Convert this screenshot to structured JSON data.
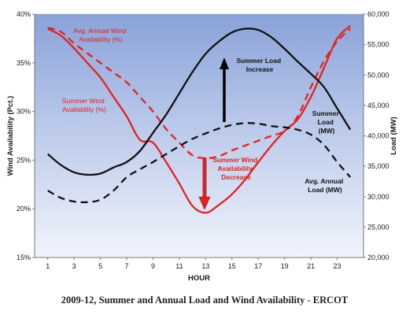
{
  "chart_data": {
    "type": "line",
    "title": "2009-12, Summer and Annual Load and Wind Availability - ERCOT",
    "xlabel": "HOUR",
    "ylabel_left": "Wind Availability (Pct.)",
    "ylabel_right": "Load (MW)",
    "x_ticks": [
      "1",
      "3",
      "5",
      "7",
      "9",
      "11",
      "13",
      "15",
      "17",
      "19",
      "21",
      "23"
    ],
    "y_left_ticks": [
      "15%",
      "20%",
      "25%",
      "30%",
      "35%",
      "40%"
    ],
    "y_right_ticks": [
      "20,000",
      "25,000",
      "30,000",
      "35,000",
      "40,000",
      "45,000",
      "50,000",
      "55,000",
      "60,000"
    ],
    "xlim": [
      0,
      25
    ],
    "ylim_left": [
      15,
      40
    ],
    "ylim_right": [
      20000,
      60000
    ],
    "grid": false,
    "x": [
      1,
      2,
      3,
      4,
      5,
      6,
      7,
      8,
      9,
      10,
      11,
      12,
      13,
      14,
      15,
      16,
      17,
      18,
      19,
      20,
      21,
      22,
      23,
      24
    ],
    "series": [
      {
        "name": "Summer Wind Availability (%)",
        "axis": "left",
        "color": "#e32220",
        "dash": "solid",
        "values": [
          38.5,
          37.8,
          36.5,
          35.0,
          33.5,
          31.5,
          29.5,
          27.1,
          26.8,
          24.8,
          22.6,
          20.3,
          19.6,
          20.4,
          21.5,
          23.0,
          24.8,
          26.5,
          28.0,
          29.2,
          31.5,
          34.5,
          37.5,
          38.8
        ]
      },
      {
        "name": "Avg. Annual Wind Availability (%)",
        "axis": "left",
        "color": "#e32220",
        "dash": "dashed",
        "values": [
          38.6,
          38.2,
          37.0,
          36.0,
          35.0,
          34.0,
          33.0,
          31.5,
          30.0,
          28.2,
          26.8,
          25.5,
          25.2,
          25.4,
          26.0,
          26.5,
          27.0,
          27.5,
          28.0,
          29.5,
          32.5,
          35.2,
          37.2,
          38.5
        ]
      },
      {
        "name": "Summer Load (MW)",
        "axis": "right",
        "color": "#111111",
        "dash": "solid",
        "values": [
          37000,
          35200,
          34000,
          33600,
          33800,
          34800,
          35700,
          37500,
          40500,
          43500,
          47000,
          50500,
          53500,
          55500,
          57000,
          57600,
          57400,
          56200,
          54300,
          52200,
          50200,
          48000,
          44500,
          41000
        ]
      },
      {
        "name": "Avg. Annual Load (MW)",
        "axis": "right",
        "color": "#111111",
        "dash": "dashed",
        "values": [
          31000,
          29800,
          29200,
          29100,
          29500,
          31000,
          33200,
          34500,
          35700,
          37000,
          38300,
          39500,
          40400,
          41200,
          41800,
          42100,
          42000,
          41600,
          41400,
          41000,
          40200,
          38500,
          35700,
          33200
        ]
      }
    ],
    "annotations": {
      "avg_wind_label": [
        "Avg. Annual  Wind",
        "Availability (%)"
      ],
      "summer_wind_label": [
        "Summer Wind",
        "Availability (%)"
      ],
      "summer_load_label": [
        "Summer",
        "Load",
        "(MW)"
      ],
      "avg_load_label": [
        "Avg. Annual",
        "Load (MW)"
      ],
      "load_increase_label": [
        "Summer Load",
        "Increase"
      ],
      "wind_decrease_label": [
        "Summer Wind",
        "Availability",
        "Decrease"
      ]
    }
  }
}
